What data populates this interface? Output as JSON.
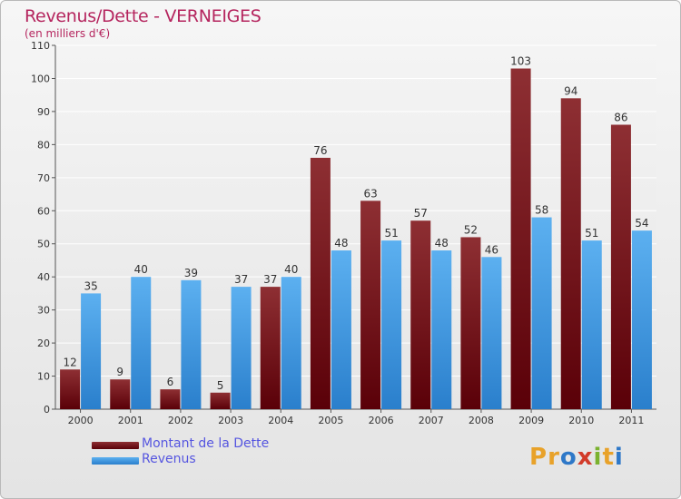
{
  "header": {
    "title": "Revenus/Dette - VERNEIGES",
    "subtitle": "(en milliers d'€)"
  },
  "legend": {
    "items": [
      {
        "label": "Montant de la Dette",
        "color": "#7a1416"
      },
      {
        "label": "Revenus",
        "color": "#3a9ae6"
      }
    ]
  },
  "logo": {
    "text": "Proxiti",
    "letters": [
      {
        "char": "P",
        "color": "#e8a22a"
      },
      {
        "char": "r",
        "color": "#e8a22a"
      },
      {
        "char": "o",
        "color": "#2e78c8"
      },
      {
        "char": "x",
        "color": "#d23b2a"
      },
      {
        "char": "i",
        "color": "#7bb22f"
      },
      {
        "char": "t",
        "color": "#e8a22a"
      },
      {
        "char": "i",
        "color": "#2e78c8"
      }
    ]
  },
  "chart_data": {
    "type": "bar",
    "title": "Revenus/Dette - VERNEIGES",
    "subtitle": "(en milliers d'€)",
    "xlabel": "",
    "ylabel": "",
    "categories": [
      "2000",
      "2001",
      "2002",
      "2003",
      "2004",
      "2005",
      "2006",
      "2007",
      "2008",
      "2009",
      "2010",
      "2011"
    ],
    "series": [
      {
        "name": "Montant de la Dette",
        "color": "#7a1416",
        "values": [
          12,
          9,
          6,
          5,
          37,
          76,
          63,
          57,
          52,
          103,
          94,
          86
        ]
      },
      {
        "name": "Revenus",
        "color": "#3a9ae6",
        "values": [
          35,
          40,
          39,
          37,
          40,
          48,
          51,
          48,
          46,
          58,
          51,
          54
        ]
      }
    ],
    "ylim": [
      0,
      110
    ],
    "yticks": [
      0,
      10,
      20,
      30,
      40,
      50,
      60,
      70,
      80,
      90,
      100,
      110
    ],
    "grid": true,
    "legend_position": "bottom-left"
  }
}
